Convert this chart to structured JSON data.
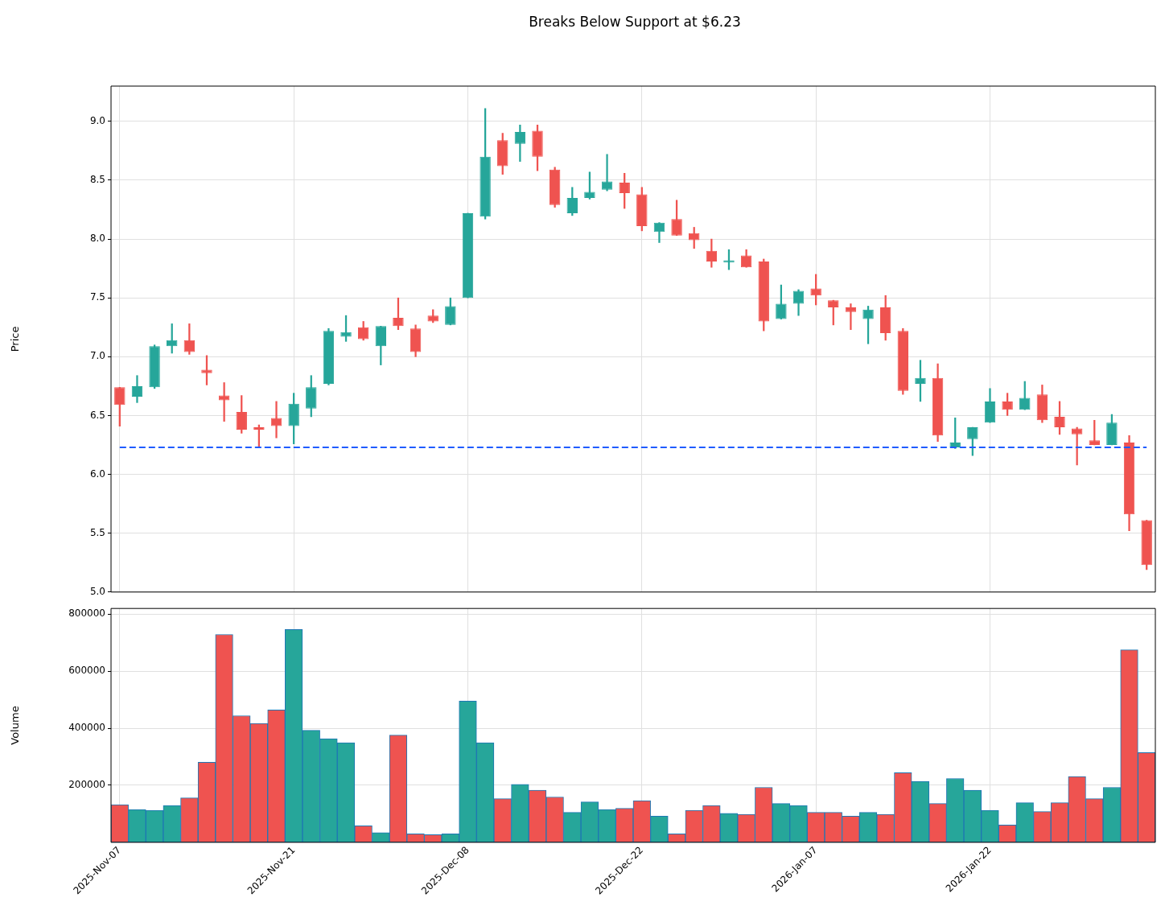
{
  "chart_data": [
    {
      "type": "candlestick",
      "title": "Breaks Below Support at $6.23",
      "ylabel": "Price",
      "categories": [
        null,
        null,
        null,
        null,
        null,
        null,
        null,
        null,
        null,
        null,
        null,
        null,
        null,
        null,
        null,
        null,
        null,
        null,
        null,
        null,
        null,
        null,
        null,
        null,
        null,
        null,
        null,
        null,
        null,
        null,
        null,
        null,
        null,
        null,
        null,
        null,
        null,
        null,
        null,
        null,
        null,
        null,
        null,
        null,
        null,
        null,
        null,
        null,
        null,
        null,
        null,
        null,
        null,
        null,
        null,
        null,
        null,
        null,
        null,
        null
      ],
      "ohlc": [
        [
          6.74,
          6.74,
          6.41,
          6.59
        ],
        [
          6.66,
          6.84,
          6.61,
          6.75
        ],
        [
          6.74,
          7.1,
          6.73,
          7.09
        ],
        [
          7.09,
          7.28,
          7.03,
          7.14
        ],
        [
          7.14,
          7.28,
          7.02,
          7.04
        ],
        [
          6.89,
          7.01,
          6.76,
          6.86
        ],
        [
          6.67,
          6.78,
          6.45,
          6.63
        ],
        [
          6.53,
          6.67,
          6.35,
          6.38
        ],
        [
          6.4,
          6.42,
          6.23,
          6.38
        ],
        [
          6.48,
          6.62,
          6.31,
          6.41
        ],
        [
          6.41,
          6.69,
          6.26,
          6.6
        ],
        [
          6.56,
          6.84,
          6.49,
          6.74
        ],
        [
          6.77,
          7.24,
          6.76,
          7.22
        ],
        [
          7.17,
          7.35,
          7.13,
          7.21
        ],
        [
          7.25,
          7.3,
          7.14,
          7.15
        ],
        [
          7.09,
          7.26,
          6.93,
          7.26
        ],
        [
          7.33,
          7.5,
          7.23,
          7.26
        ],
        [
          7.24,
          7.27,
          7.0,
          7.04
        ],
        [
          7.35,
          7.4,
          7.29,
          7.3
        ],
        [
          7.27,
          7.5,
          7.27,
          7.43
        ],
        [
          7.5,
          8.22,
          7.5,
          8.22
        ],
        [
          8.19,
          9.11,
          8.17,
          8.7
        ],
        [
          8.84,
          8.9,
          8.55,
          8.62
        ],
        [
          8.81,
          8.97,
          8.66,
          8.91
        ],
        [
          8.92,
          8.97,
          8.58,
          8.7
        ],
        [
          8.59,
          8.61,
          8.27,
          8.29
        ],
        [
          8.22,
          8.44,
          8.2,
          8.35
        ],
        [
          8.35,
          8.57,
          8.34,
          8.4
        ],
        [
          8.42,
          8.72,
          8.41,
          8.49
        ],
        [
          8.48,
          8.56,
          8.26,
          8.39
        ],
        [
          8.38,
          8.44,
          8.07,
          8.11
        ],
        [
          8.06,
          8.14,
          7.97,
          8.14
        ],
        [
          8.17,
          8.33,
          8.03,
          8.03
        ],
        [
          8.05,
          8.1,
          7.92,
          7.99
        ],
        [
          7.9,
          8.0,
          7.76,
          7.81
        ],
        [
          7.8,
          7.91,
          7.74,
          7.82
        ],
        [
          7.86,
          7.91,
          7.76,
          7.76
        ],
        [
          7.81,
          7.83,
          7.22,
          7.3
        ],
        [
          7.32,
          7.61,
          7.32,
          7.45
        ],
        [
          7.45,
          7.57,
          7.35,
          7.56
        ],
        [
          7.58,
          7.7,
          7.44,
          7.52
        ],
        [
          7.48,
          7.48,
          7.27,
          7.42
        ],
        [
          7.42,
          7.45,
          7.23,
          7.38
        ],
        [
          7.32,
          7.43,
          7.11,
          7.4
        ],
        [
          7.42,
          7.52,
          7.14,
          7.2
        ],
        [
          7.22,
          7.24,
          6.68,
          6.71
        ],
        [
          6.77,
          6.97,
          6.62,
          6.82
        ],
        [
          6.82,
          6.94,
          6.28,
          6.33
        ],
        [
          6.23,
          6.48,
          6.22,
          6.27
        ],
        [
          6.3,
          6.4,
          6.16,
          6.4
        ],
        [
          6.44,
          6.73,
          6.44,
          6.62
        ],
        [
          6.62,
          6.69,
          6.5,
          6.55
        ],
        [
          6.55,
          6.79,
          6.55,
          6.65
        ],
        [
          6.68,
          6.76,
          6.44,
          6.46
        ],
        [
          6.49,
          6.62,
          6.34,
          6.4
        ],
        [
          6.39,
          6.4,
          6.08,
          6.34
        ],
        [
          6.29,
          6.46,
          6.25,
          6.25
        ],
        [
          6.25,
          6.51,
          6.25,
          6.44
        ],
        [
          6.27,
          6.33,
          5.52,
          5.66
        ],
        [
          5.61,
          5.61,
          5.19,
          5.23
        ]
      ],
      "colors": [
        "#ef5350",
        "#26a69a",
        "#26a69a",
        "#26a69a",
        "#ef5350",
        "#ef5350",
        "#ef5350",
        "#ef5350",
        "#ef5350",
        "#ef5350",
        "#26a69a",
        "#26a69a",
        "#26a69a",
        "#26a69a",
        "#ef5350",
        "#26a69a",
        "#ef5350",
        "#ef5350",
        "#ef5350",
        "#26a69a",
        "#26a69a",
        "#26a69a",
        "#ef5350",
        "#26a69a",
        "#ef5350",
        "#ef5350",
        "#26a69a",
        "#26a69a",
        "#26a69a",
        "#ef5350",
        "#ef5350",
        "#26a69a",
        "#ef5350",
        "#ef5350",
        "#ef5350",
        "#26a69a",
        "#ef5350",
        "#ef5350",
        "#26a69a",
        "#26a69a",
        "#ef5350",
        "#ef5350",
        "#ef5350",
        "#26a69a",
        "#ef5350",
        "#ef5350",
        "#26a69a",
        "#ef5350",
        "#26a69a",
        "#26a69a",
        "#26a69a",
        "#ef5350",
        "#26a69a",
        "#ef5350",
        "#ef5350",
        "#ef5350",
        "#ef5350",
        "#26a69a",
        "#ef5350",
        "#ef5350"
      ],
      "ylim": [
        5.0,
        9.3
      ],
      "yticks": [
        {
          "value": 5,
          "label": "5.0"
        },
        5.5,
        {
          "value": 6,
          "label": "6.0"
        },
        6.5,
        {
          "value": 7,
          "label": "7.0"
        },
        7.5,
        {
          "value": 8,
          "label": "8.0"
        },
        8.5,
        {
          "value": 9,
          "label": "9.0"
        }
      ],
      "grid": true,
      "tick_labels": "y",
      "ref_lines": [
        {
          "axis": "y",
          "value": 6.23,
          "color": "#1f5cff",
          "line_style": "dashed"
        }
      ]
    },
    {
      "type": "bar",
      "ylabel": "Volume",
      "categories": [
        "2025-Nov-07",
        null,
        null,
        null,
        null,
        null,
        null,
        null,
        null,
        null,
        "2025-Nov-21",
        null,
        null,
        null,
        null,
        null,
        null,
        null,
        null,
        null,
        "2025-Dec-08",
        null,
        null,
        null,
        null,
        null,
        null,
        null,
        null,
        null,
        "2025-Dec-22",
        null,
        null,
        null,
        null,
        null,
        null,
        null,
        null,
        null,
        "2026-Jan-07",
        null,
        null,
        null,
        null,
        null,
        null,
        null,
        null,
        null,
        "2026-Jan-22",
        null,
        null,
        null,
        null,
        null,
        null,
        null,
        null,
        null
      ],
      "values": [
        132000,
        115000,
        112000,
        129000,
        156000,
        281000,
        729000,
        444000,
        417000,
        464000,
        746000,
        393000,
        363000,
        349000,
        58000,
        34000,
        376000,
        30000,
        27000,
        30000,
        495000,
        349000,
        153000,
        203000,
        183000,
        159000,
        105000,
        142000,
        115000,
        119000,
        146000,
        92000,
        30000,
        112000,
        129000,
        102000,
        98000,
        193000,
        136000,
        129000,
        105000,
        105000,
        92000,
        105000,
        98000,
        244000,
        214000,
        136000,
        224000,
        183000,
        112000,
        61000,
        139000,
        108000,
        139000,
        231000,
        153000,
        193000,
        675000,
        315000
      ],
      "colors": [
        "#ef5350",
        "#26a69a",
        "#26a69a",
        "#26a69a",
        "#ef5350",
        "#ef5350",
        "#ef5350",
        "#ef5350",
        "#ef5350",
        "#ef5350",
        "#26a69a",
        "#26a69a",
        "#26a69a",
        "#26a69a",
        "#ef5350",
        "#26a69a",
        "#ef5350",
        "#ef5350",
        "#ef5350",
        "#26a69a",
        "#26a69a",
        "#26a69a",
        "#ef5350",
        "#26a69a",
        "#ef5350",
        "#ef5350",
        "#26a69a",
        "#26a69a",
        "#26a69a",
        "#ef5350",
        "#ef5350",
        "#26a69a",
        "#ef5350",
        "#ef5350",
        "#ef5350",
        "#26a69a",
        "#ef5350",
        "#ef5350",
        "#26a69a",
        "#26a69a",
        "#ef5350",
        "#ef5350",
        "#ef5350",
        "#26a69a",
        "#ef5350",
        "#ef5350",
        "#26a69a",
        "#ef5350",
        "#26a69a",
        "#26a69a",
        "#26a69a",
        "#ef5350",
        "#26a69a",
        "#ef5350",
        "#ef5350",
        "#ef5350",
        "#ef5350",
        "#26a69a",
        "#ef5350",
        "#ef5350"
      ],
      "ylim": [
        0,
        820000
      ],
      "yticks": [
        200000,
        400000,
        600000,
        800000
      ],
      "grid": true
    }
  ]
}
